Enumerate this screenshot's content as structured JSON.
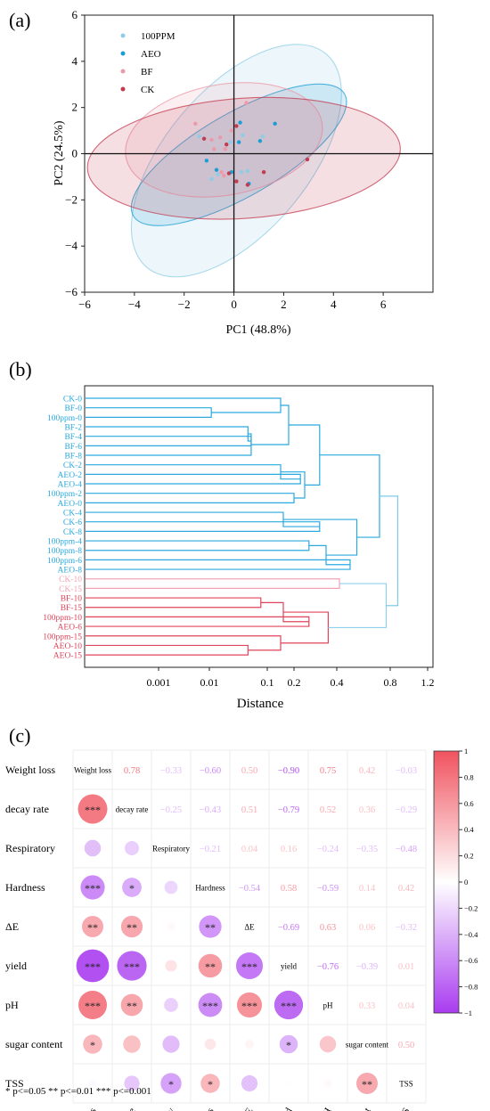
{
  "colors": {
    "ppm100": "#8fcde6",
    "aeo": "#1a9ed4",
    "bf": "#ec9aaa",
    "ck": "#c33b4f",
    "dendro_blue": "#2aa9de",
    "dendro_pink": "#f2a4b4",
    "dendro_red": "#e0445a",
    "corr_pos": "#f0535f",
    "corr_neg": "#a93cf0"
  },
  "chart_data": [
    {
      "type": "scatter",
      "panel_label": "(a)",
      "xlabel": "PC1 (48.8%)",
      "ylabel": "PC2 (24.5%)",
      "xlim": [
        -6,
        8
      ],
      "ylim": [
        -6,
        6
      ],
      "x_ticks": [
        -6,
        -4,
        -2,
        0,
        2,
        4,
        6
      ],
      "y_ticks": [
        -6,
        -4,
        -2,
        0,
        2,
        4,
        6
      ],
      "legend_position": "top-left",
      "series": [
        {
          "name": "100PPM",
          "color_key": "ppm100",
          "points": [
            [
              -1.4,
              0.75
            ],
            [
              0.35,
              0.8
            ],
            [
              1.15,
              0.75
            ],
            [
              0.3,
              -0.8
            ],
            [
              -0.9,
              -1.1
            ],
            [
              -0.65,
              -0.9
            ],
            [
              0.55,
              -0.75
            ],
            [
              -0.15,
              0.5
            ]
          ],
          "ellipse": {
            "cx": 0.1,
            "cy": -0.3,
            "rx": 5.6,
            "ry": 3.1,
            "angle": 50
          }
        },
        {
          "name": "AEO",
          "color_key": "aeo",
          "points": [
            [
              1.65,
              1.3
            ],
            [
              1.05,
              0.55
            ],
            [
              0.2,
              0.5
            ],
            [
              -0.1,
              -0.8
            ],
            [
              -0.7,
              -0.7
            ],
            [
              -1.1,
              -0.3
            ],
            [
              0.6,
              -1.3
            ],
            [
              0.25,
              1.35
            ]
          ],
          "ellipse": {
            "cx": 0.2,
            "cy": -0.05,
            "rx": 4.9,
            "ry": 1.8,
            "angle": 30
          }
        },
        {
          "name": "BF",
          "color_key": "bf",
          "points": [
            [
              -1.55,
              1.3
            ],
            [
              0.5,
              2.2
            ],
            [
              -0.55,
              0.7
            ],
            [
              -0.35,
              0.2
            ],
            [
              -0.9,
              0.6
            ],
            [
              -0.4,
              -0.95
            ],
            [
              -0.5,
              -0.8
            ],
            [
              -0.1,
              1.0
            ],
            [
              -0.8,
              0.2
            ]
          ],
          "ellipse": {
            "cx": -0.4,
            "cy": 0.6,
            "rx": 4.0,
            "ry": 2.4,
            "angle": 10
          }
        },
        {
          "name": "CK",
          "color_key": "ck",
          "points": [
            [
              -1.2,
              0.65
            ],
            [
              -0.2,
              -0.85
            ],
            [
              0.1,
              -1.2
            ],
            [
              0.55,
              -1.35
            ],
            [
              1.2,
              -0.8
            ],
            [
              2.95,
              -0.25
            ],
            [
              -0.3,
              0.4
            ],
            [
              0.1,
              1.2
            ]
          ],
          "ellipse": {
            "cx": 0.4,
            "cy": -0.2,
            "rx": 6.3,
            "ry": 2.6,
            "angle": 4
          }
        }
      ]
    },
    {
      "type": "dendrogram",
      "panel_label": "(b)",
      "xlabel": "Distance",
      "x_ticks": [
        0.001,
        0.01,
        0.1,
        0.2,
        0.4,
        0.8,
        1.2
      ],
      "x_tick_labels": [
        "0.001",
        "0.01",
        "0.1",
        "0.2",
        "0.4",
        "0.8",
        "1.2"
      ],
      "leaves": [
        {
          "label": "CK-0",
          "cluster": "blue"
        },
        {
          "label": "BF-0",
          "cluster": "blue"
        },
        {
          "label": "100ppm-0",
          "cluster": "blue"
        },
        {
          "label": "BF-2",
          "cluster": "blue"
        },
        {
          "label": "BF-4",
          "cluster": "blue"
        },
        {
          "label": "BF-6",
          "cluster": "blue"
        },
        {
          "label": "BF-8",
          "cluster": "blue"
        },
        {
          "label": "CK-2",
          "cluster": "blue"
        },
        {
          "label": "AEO-2",
          "cluster": "blue"
        },
        {
          "label": "AEO-4",
          "cluster": "blue"
        },
        {
          "label": "100ppm-2",
          "cluster": "blue"
        },
        {
          "label": "AEO-0",
          "cluster": "blue"
        },
        {
          "label": "CK-4",
          "cluster": "blue"
        },
        {
          "label": "CK-6",
          "cluster": "blue"
        },
        {
          "label": "CK-8",
          "cluster": "blue"
        },
        {
          "label": "100ppm-4",
          "cluster": "blue"
        },
        {
          "label": "100ppm-8",
          "cluster": "blue"
        },
        {
          "label": "100ppm-6",
          "cluster": "blue"
        },
        {
          "label": "AEO-8",
          "cluster": "blue"
        },
        {
          "label": "CK-10",
          "cluster": "pink"
        },
        {
          "label": "CK-15",
          "cluster": "pink"
        },
        {
          "label": "BF-10",
          "cluster": "red"
        },
        {
          "label": "BF-15",
          "cluster": "red"
        },
        {
          "label": "100ppm-10",
          "cluster": "red"
        },
        {
          "label": "AEO-6",
          "cluster": "red"
        },
        {
          "label": "100ppm-15",
          "cluster": "red"
        },
        {
          "label": "AEO-10",
          "cluster": "red"
        },
        {
          "label": "AEO-15",
          "cluster": "red"
        }
      ],
      "merges": [
        {
          "a": "L4",
          "b": "L5",
          "h": 0.075,
          "cluster": "blue"
        },
        {
          "a": "L3",
          "b": "M0",
          "h": 0.07,
          "cluster": "blue"
        },
        {
          "a": "L6",
          "b": "M1",
          "h": 0.075,
          "cluster": "blue"
        },
        {
          "a": "L1",
          "b": "L2",
          "h": 0.013,
          "cluster": "blue"
        },
        {
          "a": "L0",
          "b": "M3",
          "h": 0.15,
          "cluster": "blue"
        },
        {
          "a": "M4",
          "b": "M2",
          "h": 0.18,
          "cluster": "blue"
        },
        {
          "a": "L8",
          "b": "L9",
          "h": 0.23,
          "cluster": "blue"
        },
        {
          "a": "L7",
          "b": "M6",
          "h": 0.15,
          "cluster": "blue"
        },
        {
          "a": "L10",
          "b": "L11",
          "h": 0.2,
          "cluster": "blue"
        },
        {
          "a": "M7",
          "b": "M8",
          "h": 0.25,
          "cluster": "blue"
        },
        {
          "a": "L13",
          "b": "L14",
          "h": 0.32,
          "cluster": "blue"
        },
        {
          "a": "L12",
          "b": "M10",
          "h": 0.16,
          "cluster": "blue"
        },
        {
          "a": "L15",
          "b": "L16",
          "h": 0.27,
          "cluster": "blue"
        },
        {
          "a": "L17",
          "b": "L18",
          "h": 0.5,
          "cluster": "blue"
        },
        {
          "a": "M12",
          "b": "M13",
          "h": 0.35,
          "cluster": "blue"
        },
        {
          "a": "M11",
          "b": "M14",
          "h": 0.55,
          "cluster": "blue"
        },
        {
          "a": "M5",
          "b": "M9",
          "h": 0.32,
          "cluster": "blue"
        },
        {
          "a": "M16",
          "b": "M15",
          "h": 0.72,
          "cluster": "blue"
        },
        {
          "a": "L19",
          "b": "L20",
          "h": 0.42,
          "cluster": "pink"
        },
        {
          "a": "L21",
          "b": "L22",
          "h": 0.09,
          "cluster": "red"
        },
        {
          "a": "L23",
          "b": "L24",
          "h": 0.27,
          "cluster": "red"
        },
        {
          "a": "M19",
          "b": "M20",
          "h": 0.16,
          "cluster": "red"
        },
        {
          "a": "L26",
          "b": "L27",
          "h": 0.07,
          "cluster": "red"
        },
        {
          "a": "L25",
          "b": "M22",
          "h": 0.15,
          "cluster": "red"
        },
        {
          "a": "M21",
          "b": "M23",
          "h": 0.36,
          "cluster": "red"
        },
        {
          "a": "M18",
          "b": "M24",
          "h": 0.77,
          "cluster": "pinkline"
        },
        {
          "a": "M17",
          "b": "M25",
          "h": 0.88,
          "cluster": "blueline"
        }
      ]
    },
    {
      "type": "heatmap",
      "panel_label": "(c)",
      "variables": [
        "Weight loss",
        "decay rate",
        "Respiratory",
        "Hardness",
        "ΔE",
        "yield",
        "pH",
        "sugar content",
        "TSS"
      ],
      "upper_values": [
        [
          0.78,
          -0.33,
          -0.6,
          0.5,
          -0.9,
          0.75,
          0.42,
          -0.03
        ],
        [
          -0.25,
          -0.43,
          0.51,
          -0.79,
          0.52,
          0.36,
          -0.29
        ],
        [
          -0.21,
          0.04,
          0.16,
          -0.24,
          -0.35,
          -0.48
        ],
        [
          -0.54,
          0.58,
          -0.59,
          0.14,
          0.42
        ],
        [
          -0.69,
          0.63,
          0.06,
          -0.32
        ],
        [
          -0.76,
          -0.39,
          0.01
        ],
        [
          0.33,
          0.04
        ],
        [
          0.5
        ]
      ],
      "upper_labels": [
        [
          "0.78",
          "-0.33",
          "-0.60",
          "0.50",
          "-0.90",
          "0.75",
          "0.42",
          "-0.03"
        ],
        [
          "-0.25",
          "-0.43",
          "0.51",
          "-0.79",
          "0.52",
          "0.36",
          "-0.29"
        ],
        [
          "-0.21",
          "0.04",
          "0.16",
          "-0.24",
          "-0.35",
          "-0.48"
        ],
        [
          "-0.54",
          "0.58",
          "-0.59",
          "0.14",
          "0.42"
        ],
        [
          "-0.69",
          "0.63",
          "0.06",
          "-0.32"
        ],
        [
          "-0.76",
          "-0.39",
          "0.01"
        ],
        [
          "0.33",
          "0.04"
        ],
        [
          "0.50"
        ]
      ],
      "significance": [
        [],
        [
          "***"
        ],
        [
          "",
          ""
        ],
        [
          "***",
          "*",
          ""
        ],
        [
          "**",
          "**",
          "",
          "**"
        ],
        [
          "***",
          "***",
          "",
          "**",
          "***"
        ],
        [
          "***",
          "**",
          "",
          "***",
          "***",
          "***"
        ],
        [
          "*",
          "",
          "",
          "",
          "",
          "*",
          ""
        ],
        [
          "",
          "",
          "*",
          "*",
          "",
          "",
          "",
          "**"
        ]
      ],
      "colorbar": {
        "range": [
          -1,
          1
        ],
        "ticks": [
          1,
          0.8,
          0.6,
          0.4,
          0.2,
          0,
          -0.2,
          -0.4,
          -0.6,
          -0.8,
          -1
        ],
        "tick_labels": [
          "1",
          "0.8",
          "0.6",
          "0.4",
          "0.2",
          "0",
          "-0.2",
          "-0.4",
          "-0.6",
          "-0.8",
          "-1"
        ]
      },
      "footnote": "* p<=0.05  ** p<=0.01  *** p<=0.001"
    }
  ]
}
